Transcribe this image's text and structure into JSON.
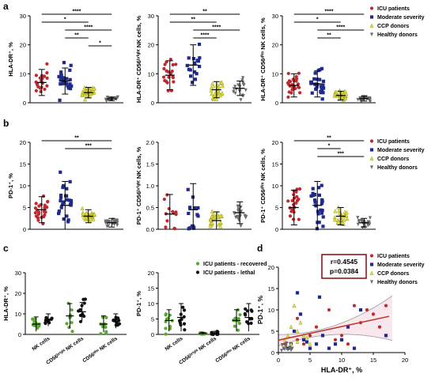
{
  "colors": {
    "icu": "#c0282f",
    "moderate": "#1f2a8c",
    "ccp": "#e3e23a",
    "healthy": "#6b6b6b",
    "recovered": "#5aa832",
    "lethal": "#111111",
    "fit_line": "#c0392b",
    "ci_line": "#9a9a9a",
    "stat_box": "#8b1a1a"
  },
  "panel_letters": [
    "a",
    "b",
    "c",
    "d"
  ],
  "legend_groups": [
    "ICU patients",
    "Moderate severity",
    "CCP donors",
    "Healthy donors"
  ],
  "legend_c": [
    "ICU patients - recovered",
    "ICU patients - lethal"
  ],
  "chart_data": [
    {
      "id": "a1",
      "type": "scatter",
      "ylabel": "HLA-DR⁺, %",
      "ylim": [
        0,
        30
      ],
      "yticks": [
        "0",
        "10",
        "20",
        "30"
      ],
      "groups": [
        {
          "name": "ICU patients",
          "mean": 7,
          "sd": 4.5,
          "n": 22
        },
        {
          "name": "Moderate severity",
          "mean": 7.5,
          "sd": 4.5,
          "n": 26
        },
        {
          "name": "CCP donors",
          "mean": 3.5,
          "sd": 1.8,
          "n": 30
        },
        {
          "name": "Healthy donors",
          "mean": 1.3,
          "sd": 0.6,
          "n": 22
        }
      ],
      "brackets": [
        {
          "g1": 0,
          "g2": 3,
          "label": "****"
        },
        {
          "g1": 0,
          "g2": 2,
          "label": "*"
        },
        {
          "g1": 1,
          "g2": 3,
          "label": "****"
        },
        {
          "g1": 1,
          "g2": 2,
          "label": "**"
        },
        {
          "g1": 2,
          "g2": 3,
          "label": "*"
        }
      ]
    },
    {
      "id": "a2",
      "type": "scatter",
      "ylabel": "HLA-DR⁺ CD56ᵇʳⁱᵍʰᵗ NK cells, %",
      "ylim": [
        0,
        30
      ],
      "yticks": [
        "0",
        "10",
        "20",
        "30"
      ],
      "groups": [
        {
          "name": "ICU patients",
          "mean": 9.5,
          "sd": 5,
          "n": 20
        },
        {
          "name": "Moderate severity",
          "mean": 13,
          "sd": 7,
          "n": 16
        },
        {
          "name": "CCP donors",
          "mean": 4.5,
          "sd": 2.8,
          "n": 28
        },
        {
          "name": "Healthy donors",
          "mean": 5,
          "sd": 2.5,
          "n": 18
        }
      ],
      "brackets": [
        {
          "g1": 0,
          "g2": 3,
          "label": "**"
        },
        {
          "g1": 0,
          "g2": 2,
          "label": "**"
        },
        {
          "g1": 1,
          "g2": 3,
          "label": "****"
        },
        {
          "g1": 1,
          "g2": 2,
          "label": "****"
        }
      ]
    },
    {
      "id": "a3",
      "type": "scatter",
      "ylabel": "HLA-DR⁺ CD56ᵈⁱᵐ NK cells, %",
      "ylim": [
        0,
        30
      ],
      "yticks": [
        "0",
        "10",
        "20",
        "30"
      ],
      "groups": [
        {
          "name": "ICU patients",
          "mean": 6,
          "sd": 4,
          "n": 24
        },
        {
          "name": "Moderate severity",
          "mean": 6.5,
          "sd": 4.5,
          "n": 26
        },
        {
          "name": "CCP donors",
          "mean": 2.5,
          "sd": 1.5,
          "n": 30
        },
        {
          "name": "Healthy donors",
          "mean": 1.4,
          "sd": 0.8,
          "n": 22
        }
      ],
      "brackets": [
        {
          "g1": 0,
          "g2": 3,
          "label": "****"
        },
        {
          "g1": 0,
          "g2": 2,
          "label": "*"
        },
        {
          "g1": 1,
          "g2": 3,
          "label": "****"
        },
        {
          "g1": 1,
          "g2": 2,
          "label": "**"
        }
      ]
    },
    {
      "id": "b1",
      "type": "scatter",
      "ylabel": "PD-1⁺, %",
      "ylim": [
        0,
        20
      ],
      "yticks": [
        "0",
        "5",
        "10",
        "15",
        "20"
      ],
      "groups": [
        {
          "name": "ICU patients",
          "mean": 4.5,
          "sd": 3,
          "n": 24
        },
        {
          "name": "Moderate severity",
          "mean": 5.5,
          "sd": 5.5,
          "n": 26
        },
        {
          "name": "CCP donors",
          "mean": 3,
          "sd": 1.5,
          "n": 28
        },
        {
          "name": "Healthy donors",
          "mean": 1.5,
          "sd": 1,
          "n": 22
        }
      ],
      "brackets": [
        {
          "g1": 0,
          "g2": 3,
          "label": "**"
        },
        {
          "g1": 1,
          "g2": 3,
          "label": "***"
        }
      ]
    },
    {
      "id": "b2",
      "type": "scatter",
      "ylabel": "PD-1⁺ CD56ᵇʳⁱᵍʰᵗ NK cells, %",
      "ylim": [
        0,
        2.0
      ],
      "yticks": [
        "0.0",
        "0.5",
        "1.0",
        "1.5",
        "2.0"
      ],
      "groups": [
        {
          "name": "ICU patients",
          "mean": 0.35,
          "sd": 0.45,
          "n": 12
        },
        {
          "name": "Moderate severity",
          "mean": 0.45,
          "sd": 0.6,
          "n": 14
        },
        {
          "name": "CCP donors",
          "mean": 0.2,
          "sd": 0.2,
          "n": 24
        },
        {
          "name": "Healthy donors",
          "mean": 0.38,
          "sd": 0.25,
          "n": 20
        }
      ],
      "brackets": []
    },
    {
      "id": "b3",
      "type": "scatter",
      "ylabel": "PD-1⁺ CD56ᵈⁱᵐ NK cells, %",
      "ylim": [
        0,
        20
      ],
      "yticks": [
        "0",
        "5",
        "10",
        "15",
        "20"
      ],
      "groups": [
        {
          "name": "ICU patients",
          "mean": 5,
          "sd": 4,
          "n": 22
        },
        {
          "name": "Moderate severity",
          "mean": 5.5,
          "sd": 5.5,
          "n": 24
        },
        {
          "name": "CCP donors",
          "mean": 3,
          "sd": 2,
          "n": 26
        },
        {
          "name": "Healthy donors",
          "mean": 1.5,
          "sd": 1,
          "n": 22
        }
      ],
      "brackets": [
        {
          "g1": 0,
          "g2": 3,
          "label": "**"
        },
        {
          "g1": 1,
          "g2": 2,
          "label": "*"
        },
        {
          "g1": 1,
          "g2": 3,
          "label": "***"
        }
      ]
    },
    {
      "id": "c1",
      "type": "scatter",
      "ylabel": "HLA-DR⁺, %",
      "ylim": [
        0,
        30
      ],
      "yticks": [
        "0",
        "10",
        "20",
        "30"
      ],
      "categories": [
        "NK cells",
        "CD56ᵇʳⁱᵍʰᵗ NK cells",
        "CD56ᵈⁱᵐ NK cells"
      ],
      "groups": [
        {
          "name": "ICU patients - recovered",
          "cat": 0,
          "mean": 5,
          "sd": 3.5,
          "n": 11
        },
        {
          "name": "ICU patients - lethal",
          "cat": 0,
          "mean": 7,
          "sd": 3,
          "n": 11
        },
        {
          "name": "ICU patients - recovered",
          "cat": 1,
          "mean": 9,
          "sd": 6,
          "n": 9
        },
        {
          "name": "ICU patients - lethal",
          "cat": 1,
          "mean": 11,
          "sd": 4.5,
          "n": 10
        },
        {
          "name": "ICU patients - recovered",
          "cat": 2,
          "mean": 5,
          "sd": 4,
          "n": 11
        },
        {
          "name": "ICU patients - lethal",
          "cat": 2,
          "mean": 6.5,
          "sd": 3.5,
          "n": 11
        }
      ],
      "brackets": []
    },
    {
      "id": "c2",
      "type": "scatter",
      "ylabel": "PD-1⁺, %",
      "ylim": [
        0,
        20
      ],
      "yticks": [
        "0",
        "5",
        "10",
        "15",
        "20"
      ],
      "categories": [
        "NK cells",
        "CD56ᵇʳⁱᵍʰᵗ NK cells",
        "CD56ᵈⁱᵐ NK cells"
      ],
      "groups": [
        {
          "name": "ICU patients - recovered",
          "cat": 0,
          "mean": 4.5,
          "sd": 3.5,
          "n": 11
        },
        {
          "name": "ICU patients - lethal",
          "cat": 0,
          "mean": 5.5,
          "sd": 4.5,
          "n": 11
        },
        {
          "name": "ICU patients - recovered",
          "cat": 1,
          "mean": 0.3,
          "sd": 0.3,
          "n": 10
        },
        {
          "name": "ICU patients - lethal",
          "cat": 1,
          "mean": 0.5,
          "sd": 0.5,
          "n": 10
        },
        {
          "name": "ICU patients - recovered",
          "cat": 2,
          "mean": 4.5,
          "sd": 3.5,
          "n": 11
        },
        {
          "name": "ICU patients - lethal",
          "cat": 2,
          "mean": 5.5,
          "sd": 4.5,
          "n": 11
        }
      ],
      "brackets": []
    },
    {
      "id": "d",
      "type": "scatter",
      "xlabel": "HLA-DR⁺, %",
      "ylabel": "PD-1⁺, %",
      "xlim": [
        0,
        20
      ],
      "ylim": [
        0,
        20
      ],
      "xticks": [
        "0",
        "5",
        "10",
        "15",
        "20"
      ],
      "yticks": [
        "0",
        "5",
        "10",
        "15",
        "20"
      ],
      "stats": [
        "r=0.4545",
        "p=0.0384"
      ],
      "fit": {
        "x": [
          0,
          17.5
        ],
        "y": [
          2.9,
          8.5
        ]
      },
      "series": [
        {
          "name": "ICU patients",
          "points": [
            [
              3,
              3
            ],
            [
              5,
              4
            ],
            [
              8,
              10
            ],
            [
              10,
              4
            ],
            [
              11,
              2
            ],
            [
              12,
              11
            ],
            [
              14,
              10
            ],
            [
              17,
              11
            ],
            [
              6,
              6
            ],
            [
              4,
              2
            ],
            [
              2,
              1
            ],
            [
              9,
              3
            ],
            [
              13,
              7
            ],
            [
              7,
              4
            ],
            [
              15,
              9
            ],
            [
              3,
              8
            ],
            [
              16,
              6
            ],
            [
              1,
              2
            ]
          ]
        },
        {
          "name": "Moderate severity",
          "points": [
            [
              1.5,
              1
            ],
            [
              2,
              2
            ],
            [
              3,
              14
            ],
            [
              4,
              3
            ],
            [
              5,
              1
            ],
            [
              6,
              2
            ],
            [
              7,
              4
            ],
            [
              8,
              1
            ],
            [
              9,
              2
            ],
            [
              10,
              3
            ],
            [
              11,
              6
            ],
            [
              12,
              1
            ],
            [
              17,
              4
            ],
            [
              13,
              10
            ],
            [
              2.5,
              5
            ],
            [
              6.5,
              13
            ],
            [
              3.5,
              9
            ],
            [
              4.5,
              2.5
            ]
          ]
        },
        {
          "name": "CCP donors",
          "points": [
            [
              1,
              3
            ],
            [
              1.5,
              4
            ],
            [
              2,
              6
            ],
            [
              2.5,
              11
            ],
            [
              3,
              5
            ],
            [
              3.5,
              7
            ],
            [
              4,
              4
            ],
            [
              5,
              2
            ],
            [
              2,
              2
            ],
            [
              1,
              1.5
            ],
            [
              3,
              2.5
            ],
            [
              4.5,
              3.5
            ]
          ]
        },
        {
          "name": "Healthy donors",
          "points": [
            [
              0.5,
              0.5
            ],
            [
              0.8,
              1
            ],
            [
              1,
              0.8
            ],
            [
              1.2,
              1.5
            ],
            [
              1.5,
              0.7
            ],
            [
              1.8,
              1.2
            ],
            [
              2,
              0.6
            ],
            [
              0.6,
              1.8
            ],
            [
              1.3,
              2.2
            ],
            [
              2.2,
              1
            ]
          ]
        }
      ]
    }
  ]
}
